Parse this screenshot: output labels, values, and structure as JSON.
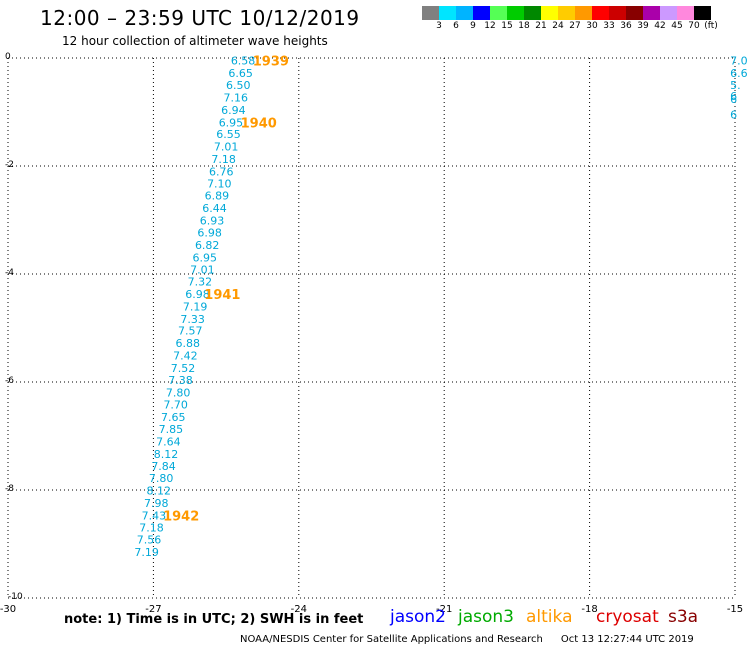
{
  "header": {
    "title": "12:00 – 23:59 UTC 10/12/2019",
    "subtitle": "12 hour collection of altimeter wave heights"
  },
  "colorbar": {
    "labels": [
      "3",
      "6",
      "9",
      "12",
      "15",
      "18",
      "21",
      "24",
      "27",
      "30",
      "33",
      "36",
      "39",
      "42",
      "45",
      "70",
      "(ft)"
    ],
    "colors": [
      "#808080",
      "#00e5ff",
      "#00b4ff",
      "#0000ff",
      "#55ff55",
      "#00cc00",
      "#008800",
      "#ffff00",
      "#ffcc00",
      "#ff9900",
      "#ff0000",
      "#cc0000",
      "#880000",
      "#aa00aa",
      "#cc99ff",
      "#ff88dd",
      "#000000"
    ]
  },
  "map": {
    "x_ticks": [
      -30,
      -27,
      -24,
      -21,
      -18,
      -15
    ],
    "y_ticks": [
      0,
      -2,
      -4,
      -6,
      -8,
      -10
    ],
    "x_range": [
      -30,
      -15
    ],
    "y_range": [
      -10,
      0
    ],
    "track_color": "#00a8d8",
    "time_color": "#ff9900",
    "track": [
      {
        "lon": -25.15,
        "lat": -0.05,
        "v": "6.58"
      },
      {
        "lon": -25.2,
        "lat": -0.28,
        "v": "6.65"
      },
      {
        "lon": -25.25,
        "lat": -0.5,
        "v": "6.50"
      },
      {
        "lon": -25.3,
        "lat": -0.73,
        "v": "7.16"
      },
      {
        "lon": -25.35,
        "lat": -0.96,
        "v": "6.94"
      },
      {
        "lon": -25.4,
        "lat": -1.19,
        "v": "6.95"
      },
      {
        "lon": -25.45,
        "lat": -1.41,
        "v": "6.55"
      },
      {
        "lon": -25.5,
        "lat": -1.64,
        "v": "7.01"
      },
      {
        "lon": -25.55,
        "lat": -1.87,
        "v": "7.18"
      },
      {
        "lon": -25.6,
        "lat": -2.1,
        "v": "6.76"
      },
      {
        "lon": -25.64,
        "lat": -2.32,
        "v": "7.10"
      },
      {
        "lon": -25.69,
        "lat": -2.55,
        "v": "6.89"
      },
      {
        "lon": -25.74,
        "lat": -2.78,
        "v": "6.44"
      },
      {
        "lon": -25.79,
        "lat": -3.01,
        "v": "6.93"
      },
      {
        "lon": -25.84,
        "lat": -3.23,
        "v": "6.98"
      },
      {
        "lon": -25.89,
        "lat": -3.46,
        "v": "6.82"
      },
      {
        "lon": -25.94,
        "lat": -3.69,
        "v": "6.95"
      },
      {
        "lon": -25.99,
        "lat": -3.92,
        "v": "7.01"
      },
      {
        "lon": -26.04,
        "lat": -4.14,
        "v": "7.32"
      },
      {
        "lon": -26.09,
        "lat": -4.37,
        "v": "6.98"
      },
      {
        "lon": -26.14,
        "lat": -4.6,
        "v": "7.19"
      },
      {
        "lon": -26.19,
        "lat": -4.83,
        "v": "7.33"
      },
      {
        "lon": -26.24,
        "lat": -5.05,
        "v": "7.57"
      },
      {
        "lon": -26.29,
        "lat": -5.28,
        "v": "6.88"
      },
      {
        "lon": -26.34,
        "lat": -5.51,
        "v": "7.42"
      },
      {
        "lon": -26.39,
        "lat": -5.74,
        "v": "7.52"
      },
      {
        "lon": -26.44,
        "lat": -5.96,
        "v": "7.38"
      },
      {
        "lon": -26.49,
        "lat": -6.19,
        "v": "7.80"
      },
      {
        "lon": -26.54,
        "lat": -6.42,
        "v": "7.70"
      },
      {
        "lon": -26.59,
        "lat": -6.65,
        "v": "7.65"
      },
      {
        "lon": -26.64,
        "lat": -6.87,
        "v": "7.85"
      },
      {
        "lon": -26.69,
        "lat": -7.1,
        "v": "7.64"
      },
      {
        "lon": -26.74,
        "lat": -7.33,
        "v": "8.12"
      },
      {
        "lon": -26.79,
        "lat": -7.56,
        "v": "7.84"
      },
      {
        "lon": -26.84,
        "lat": -7.78,
        "v": "7.80"
      },
      {
        "lon": -26.89,
        "lat": -8.01,
        "v": "8.12"
      },
      {
        "lon": -26.94,
        "lat": -8.24,
        "v": "7.98"
      },
      {
        "lon": -26.99,
        "lat": -8.47,
        "v": "7.43"
      },
      {
        "lon": -27.04,
        "lat": -8.69,
        "v": "7.18"
      },
      {
        "lon": -27.09,
        "lat": -8.92,
        "v": "7.56"
      },
      {
        "lon": -27.14,
        "lat": -9.15,
        "v": "7.19"
      }
    ],
    "edge_values": [
      {
        "lon": -15.1,
        "lat": -0.05,
        "v": "7.0"
      },
      {
        "lon": -15.1,
        "lat": -0.28,
        "v": "6.6"
      },
      {
        "lon": -15.1,
        "lat": -0.5,
        "v": "5."
      },
      {
        "lon": -15.1,
        "lat": -0.7,
        "v": "6"
      },
      {
        "lon": -15.1,
        "lat": -0.76,
        "v": "6"
      },
      {
        "lon": -15.1,
        "lat": -1.05,
        "v": "6"
      }
    ],
    "time_labels": [
      {
        "lon": -24.95,
        "lat": -0.05,
        "t": "1939"
      },
      {
        "lon": -25.2,
        "lat": -1.19,
        "t": "1940"
      },
      {
        "lon": -25.95,
        "lat": -4.37,
        "t": "1941"
      },
      {
        "lon": -26.8,
        "lat": -8.47,
        "t": "1942"
      }
    ]
  },
  "note": "note: 1) Time is in UTC; 2) SWH is in feet",
  "legend": [
    {
      "name": "jason2",
      "color": "#0000ff"
    },
    {
      "name": "jason3",
      "color": "#00aa00"
    },
    {
      "name": "altika",
      "color": "#ff9900"
    },
    {
      "name": "cryosat",
      "color": "#dd0000"
    },
    {
      "name": "s3a",
      "color": "#880000"
    }
  ],
  "footer": {
    "org": "NOAA/NESDIS Center for Satellite Applications and Research",
    "timestamp": "Oct 13 12:27:44 UTC 2019"
  }
}
